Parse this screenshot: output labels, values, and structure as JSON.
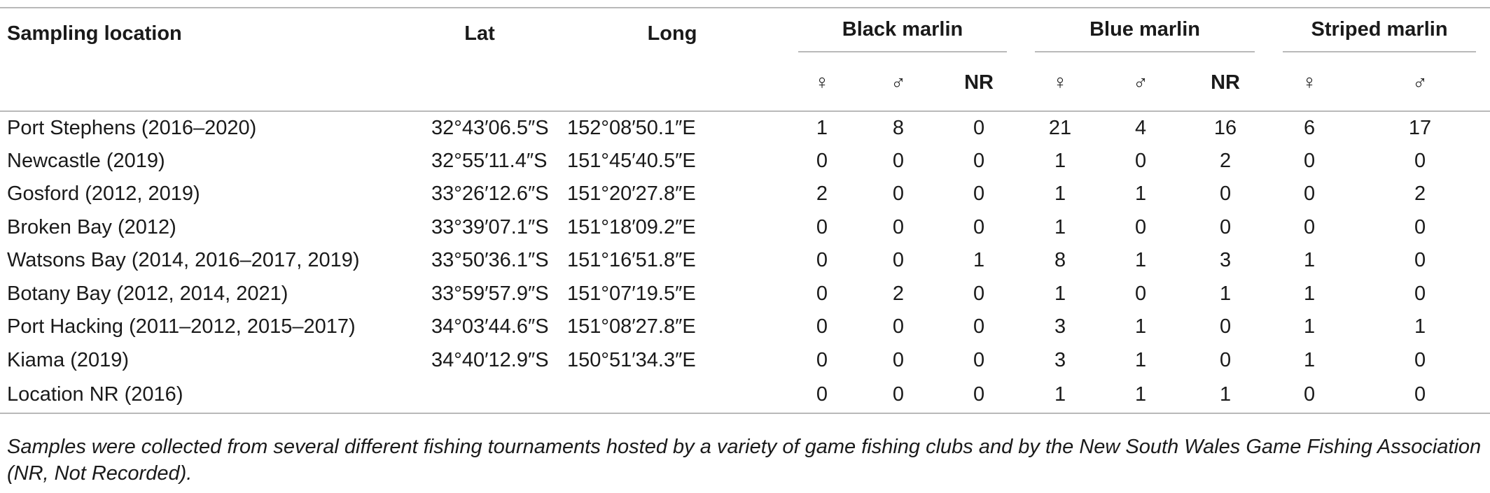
{
  "table": {
    "header": {
      "location": "Sampling location",
      "lat": "Lat",
      "long": "Long",
      "groups": [
        "Black marlin",
        "Blue marlin",
        "Striped marlin"
      ],
      "sub": [
        "♀",
        "♂",
        "NR",
        "♀",
        "♂",
        "NR",
        "♀",
        "♂"
      ]
    },
    "rows": [
      {
        "location": "Port Stephens (2016–2020)",
        "lat": "32°43′06.5″S",
        "long": "152°08′50.1″E",
        "v": [
          "1",
          "8",
          "0",
          "21",
          "4",
          "16",
          "6",
          "17"
        ]
      },
      {
        "location": "Newcastle (2019)",
        "lat": "32°55′11.4″S",
        "long": "151°45′40.5″E",
        "v": [
          "0",
          "0",
          "0",
          "1",
          "0",
          "2",
          "0",
          "0"
        ]
      },
      {
        "location": "Gosford (2012, 2019)",
        "lat": "33°26′12.6″S",
        "long": "151°20′27.8″E",
        "v": [
          "2",
          "0",
          "0",
          "1",
          "1",
          "0",
          "0",
          "2"
        ]
      },
      {
        "location": "Broken Bay (2012)",
        "lat": "33°39′07.1″S",
        "long": "151°18′09.2″E",
        "v": [
          "0",
          "0",
          "0",
          "1",
          "0",
          "0",
          "0",
          "0"
        ]
      },
      {
        "location": "Watsons Bay (2014, 2016–2017, 2019)",
        "lat": "33°50′36.1″S",
        "long": "151°16′51.8″E",
        "v": [
          "0",
          "0",
          "1",
          "8",
          "1",
          "3",
          "1",
          "0"
        ]
      },
      {
        "location": "Botany Bay (2012, 2014, 2021)",
        "lat": "33°59′57.9″S",
        "long": "151°07′19.5″E",
        "v": [
          "0",
          "2",
          "0",
          "1",
          "0",
          "1",
          "1",
          "0"
        ]
      },
      {
        "location": "Port Hacking (2011–2012, 2015–2017)",
        "lat": "34°03′44.6″S",
        "long": "151°08′27.8″E",
        "v": [
          "0",
          "0",
          "0",
          "3",
          "1",
          "0",
          "1",
          "1"
        ]
      },
      {
        "location": "Kiama (2019)",
        "lat": "34°40′12.9″S",
        "long": "150°51′34.3″E",
        "v": [
          "0",
          "0",
          "0",
          "3",
          "1",
          "0",
          "1",
          "0"
        ]
      },
      {
        "location": "Location NR (2016)",
        "lat": "",
        "long": "",
        "v": [
          "0",
          "0",
          "0",
          "1",
          "1",
          "1",
          "0",
          "0"
        ]
      }
    ],
    "footnote": "Samples were collected from several different fishing tournaments hosted by a variety of game fishing clubs and by the New South Wales Game Fishing Association (NR, Not Recorded)."
  }
}
